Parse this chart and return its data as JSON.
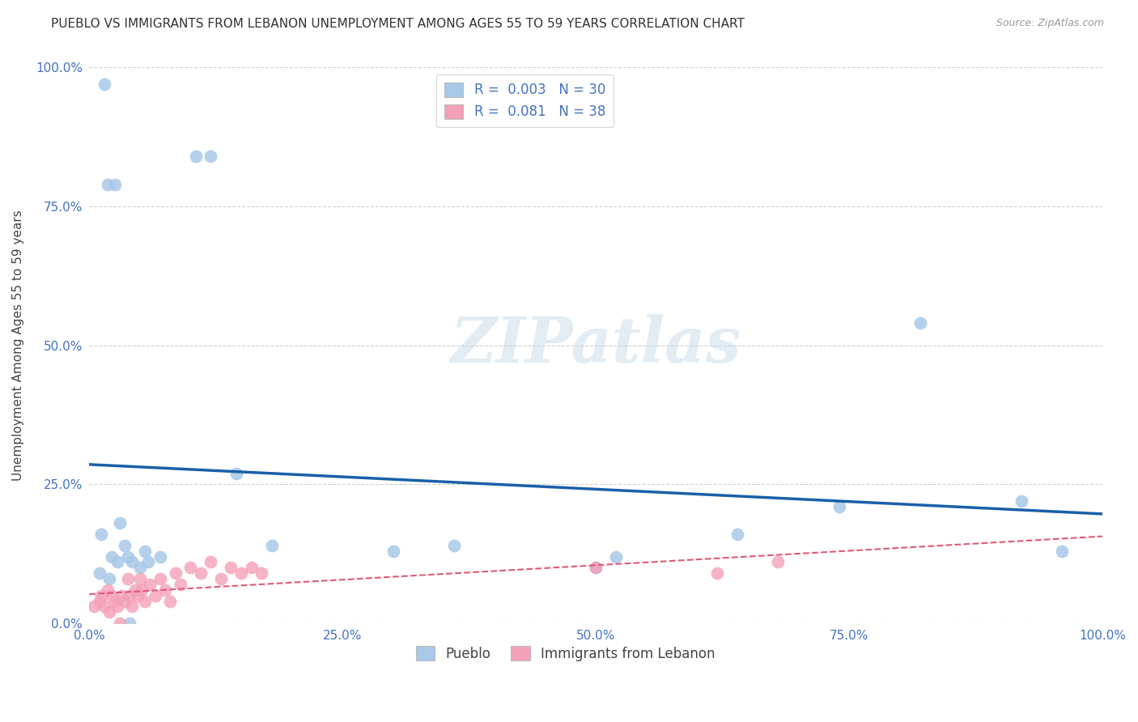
{
  "title": "PUEBLO VS IMMIGRANTS FROM LEBANON UNEMPLOYMENT AMONG AGES 55 TO 59 YEARS CORRELATION CHART",
  "source": "Source: ZipAtlas.com",
  "ylabel": "Unemployment Among Ages 55 to 59 years",
  "xlim": [
    0,
    100
  ],
  "ylim": [
    0,
    100
  ],
  "xticks": [
    0,
    25,
    50,
    75,
    100
  ],
  "yticks": [
    0,
    25,
    50,
    75,
    100
  ],
  "xticklabels": [
    "0.0%",
    "25.0%",
    "50.0%",
    "75.0%",
    "100.0%"
  ],
  "yticklabels": [
    "0.0%",
    "25.0%",
    "50.0%",
    "75.0%",
    "100.0%"
  ],
  "pueblo_color": "#a8c8e8",
  "lebanon_color": "#f4a0b8",
  "pueblo_R": "0.003",
  "pueblo_N": "30",
  "lebanon_R": "0.081",
  "lebanon_N": "38",
  "pueblo_trend_color": "#1a5fa8",
  "lebanon_trend_color": "#e05878",
  "watermark": "ZIPatlas",
  "pueblo_x": [
    1.5,
    1.8,
    10.5,
    12.0,
    2.5,
    3.5,
    3.8,
    4.2,
    5.0,
    1.2,
    1.0,
    2.0,
    2.2,
    3.0,
    4.0,
    14.5,
    2.8,
    5.5,
    52.0,
    50.0,
    82.0,
    64.0,
    92.0,
    96.0,
    30.0,
    74.0,
    36.0,
    18.0,
    7.0,
    5.8
  ],
  "pueblo_y": [
    97.0,
    79.0,
    84.0,
    84.0,
    79.0,
    14.0,
    12.0,
    11.0,
    10.0,
    16.0,
    9.0,
    8.0,
    12.0,
    18.0,
    0.0,
    27.0,
    11.0,
    13.0,
    12.0,
    10.0,
    54.0,
    16.0,
    22.0,
    13.0,
    13.0,
    21.0,
    14.0,
    14.0,
    12.0,
    11.0
  ],
  "lebanon_x": [
    0.5,
    1.0,
    1.2,
    1.5,
    1.8,
    2.0,
    2.2,
    2.5,
    2.8,
    3.0,
    3.2,
    3.5,
    3.8,
    4.0,
    4.2,
    4.5,
    4.8,
    5.0,
    5.2,
    5.5,
    6.0,
    6.5,
    7.0,
    7.5,
    8.0,
    8.5,
    9.0,
    10.0,
    11.0,
    12.0,
    13.0,
    14.0,
    15.0,
    16.0,
    17.0,
    50.0,
    62.0,
    68.0
  ],
  "lebanon_y": [
    3.0,
    4.0,
    5.0,
    3.0,
    6.0,
    2.0,
    5.0,
    4.0,
    3.0,
    0.0,
    5.0,
    4.0,
    8.0,
    5.0,
    3.0,
    6.0,
    5.0,
    8.0,
    6.0,
    4.0,
    7.0,
    5.0,
    8.0,
    6.0,
    4.0,
    9.0,
    7.0,
    10.0,
    9.0,
    11.0,
    8.0,
    10.0,
    9.0,
    10.0,
    9.0,
    10.0,
    9.0,
    11.0
  ],
  "grid_color": "#d0d0d0",
  "background_color": "#ffffff",
  "tick_color": "#4472c4",
  "title_fontsize": 11,
  "axis_label_fontsize": 11,
  "tick_fontsize": 11
}
